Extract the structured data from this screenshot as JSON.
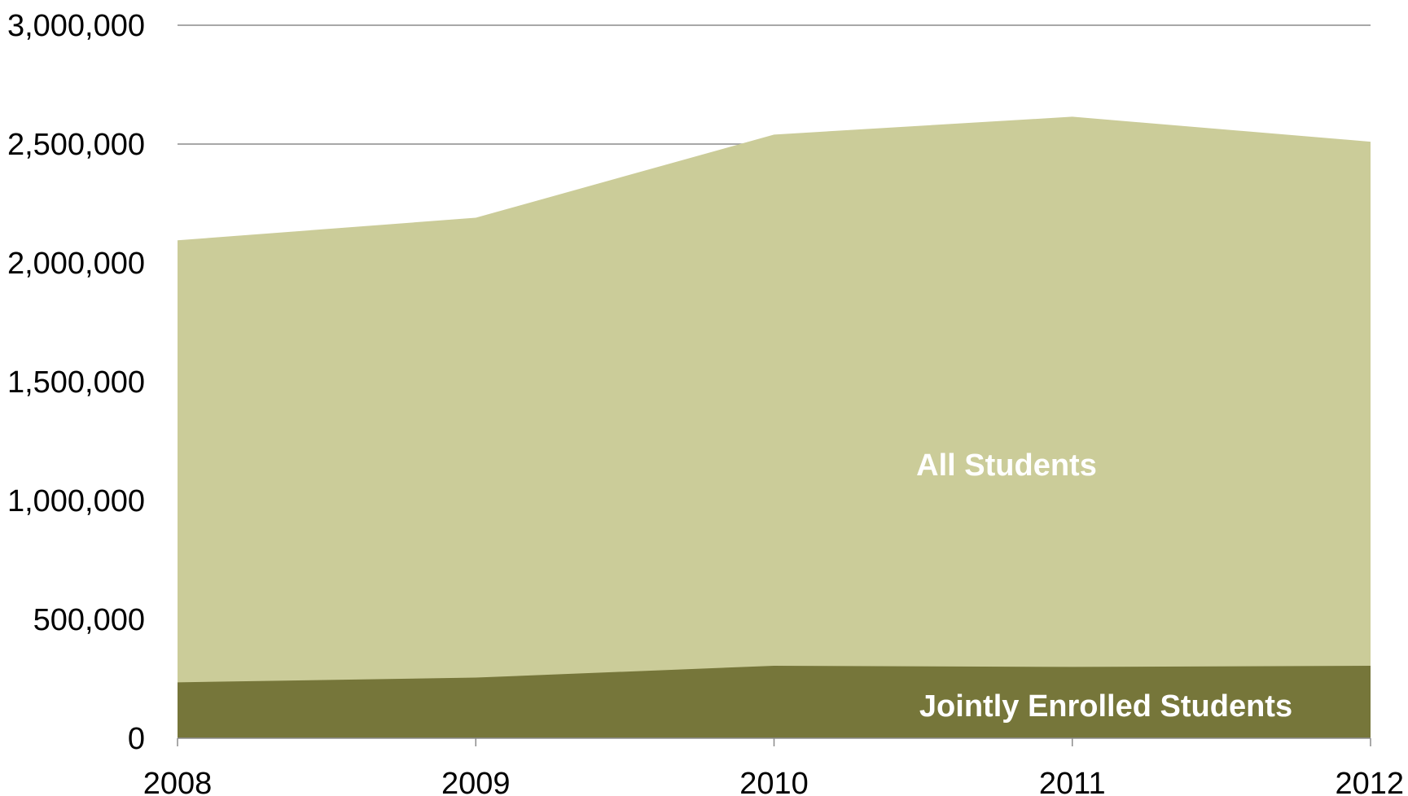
{
  "chart_data": {
    "type": "area",
    "stacked": false,
    "x": [
      2008,
      2009,
      2010,
      2011,
      2012
    ],
    "series": [
      {
        "name": "All Students",
        "values": [
          2095000,
          2190000,
          2540000,
          2615000,
          2510000
        ],
        "color": "#cbcc99"
      },
      {
        "name": "Jointly Enrolled Students",
        "values": [
          235000,
          255000,
          305000,
          300000,
          305000
        ],
        "color": "#76763a"
      }
    ],
    "xlabel": "",
    "ylabel": "",
    "ylim": [
      0,
      3000000
    ],
    "yticks": [
      0,
      500000,
      1000000,
      1500000,
      2000000,
      2500000,
      3000000
    ],
    "ytick_labels": [
      "0",
      "500,000",
      "1,000,000",
      "1,500,000",
      "2,000,000",
      "2,500,000",
      "3,000,000"
    ],
    "xtick_labels": [
      "2008",
      "2009",
      "2010",
      "2011",
      "2012"
    ],
    "grid": true,
    "legend": "inline labels inside areas",
    "gridline_color": "#8c8c8c",
    "label_color": "#ffffff"
  }
}
